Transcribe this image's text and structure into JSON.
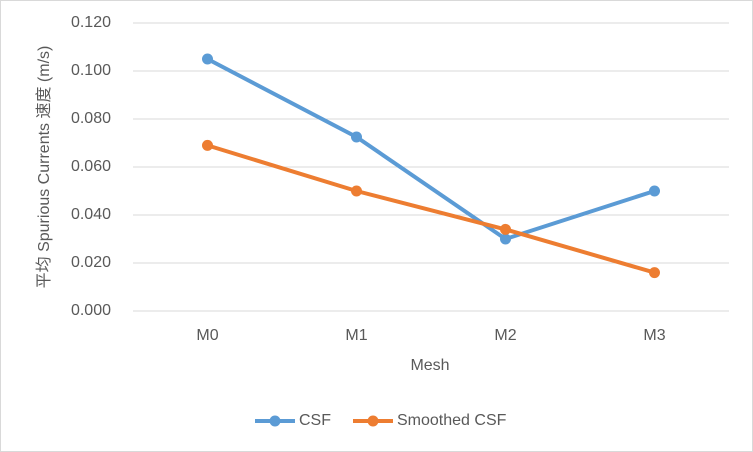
{
  "chart_data": {
    "type": "line",
    "categories": [
      "M0",
      "M1",
      "M2",
      "M3"
    ],
    "series": [
      {
        "name": "CSF",
        "color": "#5b9bd5",
        "values": [
          0.105,
          0.0725,
          0.03,
          0.05
        ]
      },
      {
        "name": "Smoothed CSF",
        "color": "#ed7d31",
        "values": [
          0.069,
          0.05,
          0.034,
          0.016
        ]
      }
    ],
    "x_label": "Mesh",
    "y_label": "平均 Spurious Currents 速度 (m/s)",
    "ylim": [
      0,
      0.12
    ],
    "yticks": [
      {
        "value": 0,
        "label": "0.000"
      },
      {
        "value": 0.02,
        "label": "0.020"
      },
      {
        "value": 0.04,
        "label": "0.040"
      },
      {
        "value": 0.06,
        "label": "0.060"
      },
      {
        "value": 0.08,
        "label": "0.080"
      },
      {
        "value": 0.1,
        "label": "0.100"
      },
      {
        "value": 0.12,
        "label": "0.120"
      }
    ],
    "grid": true,
    "legend": "bottom"
  }
}
